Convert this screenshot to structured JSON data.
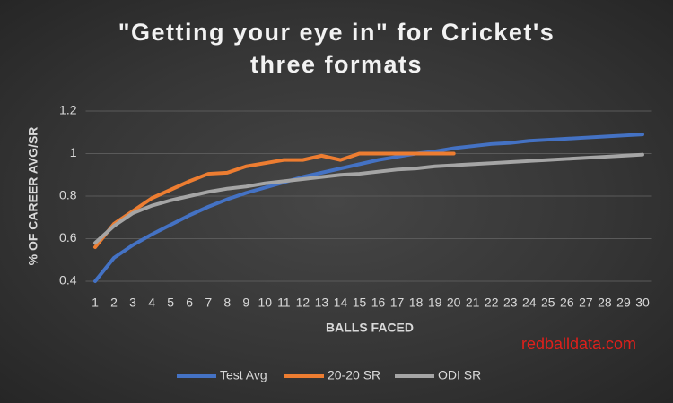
{
  "chart_data": {
    "type": "line",
    "title": "\"Getting your eye in\" for Cricket's three formats",
    "x_label": "BALLS FACED",
    "y_label": "% OF CAREER AVG/SR",
    "annotation": "redballdata.com",
    "categories": [
      "1",
      "2",
      "3",
      "4",
      "5",
      "6",
      "7",
      "8",
      "9",
      "10",
      "11",
      "12",
      "13",
      "14",
      "15",
      "16",
      "17",
      "18",
      "19",
      "20",
      "21",
      "22",
      "23",
      "24",
      "25",
      "26",
      "27",
      "28",
      "29",
      "30"
    ],
    "series": [
      {
        "name": "Test Avg",
        "color": "#4472c4",
        "values": [
          0.4,
          0.51,
          0.57,
          0.62,
          0.665,
          0.71,
          0.75,
          0.785,
          0.815,
          0.84,
          0.865,
          0.89,
          0.91,
          0.93,
          0.95,
          0.97,
          0.985,
          1.0,
          1.01,
          1.025,
          1.035,
          1.045,
          1.05,
          1.06,
          1.065,
          1.07,
          1.075,
          1.08,
          1.085,
          1.09
        ]
      },
      {
        "name": "20-20 SR",
        "color": "#ed7d31",
        "values": [
          0.56,
          0.67,
          0.73,
          0.79,
          0.83,
          0.87,
          0.905,
          0.91,
          0.94,
          0.955,
          0.97,
          0.97,
          0.99,
          0.97,
          1.0,
          1.0,
          1.0,
          1.0,
          1.0,
          1.0,
          null,
          null,
          null,
          null,
          null,
          null,
          null,
          null,
          null,
          null
        ]
      },
      {
        "name": "ODI SR",
        "color": "#a5a5a5",
        "values": [
          0.58,
          0.66,
          0.72,
          0.755,
          0.78,
          0.8,
          0.82,
          0.835,
          0.845,
          0.86,
          0.87,
          0.88,
          0.89,
          0.9,
          0.905,
          0.915,
          0.925,
          0.93,
          0.94,
          0.945,
          0.95,
          0.955,
          0.96,
          0.965,
          0.97,
          0.975,
          0.98,
          0.985,
          0.99,
          0.995
        ]
      }
    ],
    "ylim": [
      0.4,
      1.2
    ],
    "yticks": [
      0.4,
      0.6,
      0.8,
      1,
      1.2
    ],
    "grid": true,
    "legend": "bottom"
  }
}
